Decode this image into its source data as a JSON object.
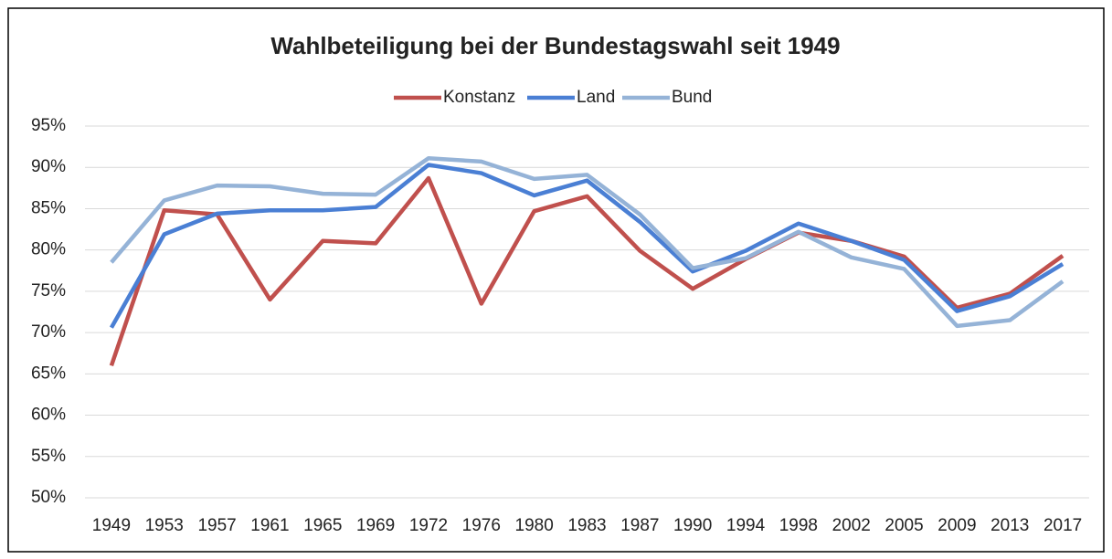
{
  "chart_data": {
    "type": "line",
    "title": "Wahlbeteiligung bei der Bundestagswahl seit 1949",
    "categories": [
      "1949",
      "1953",
      "1957",
      "1961",
      "1965",
      "1969",
      "1972",
      "1976",
      "1980",
      "1983",
      "1987",
      "1990",
      "1994",
      "1998",
      "2002",
      "2005",
      "2009",
      "2013",
      "2017"
    ],
    "series": [
      {
        "name": "Konstanz",
        "color": "#c0504d",
        "values": [
          66.0,
          84.8,
          84.3,
          74.0,
          81.1,
          80.8,
          88.7,
          73.5,
          84.7,
          86.5,
          79.9,
          75.3,
          78.9,
          82.1,
          81.1,
          79.2,
          73.0,
          74.7,
          79.3
        ]
      },
      {
        "name": "Land",
        "color": "#4a7fd4",
        "values": [
          70.6,
          81.9,
          84.4,
          84.8,
          84.8,
          85.2,
          90.3,
          89.3,
          86.6,
          88.4,
          83.4,
          77.4,
          79.9,
          83.2,
          81.1,
          78.8,
          72.6,
          74.4,
          78.3
        ]
      },
      {
        "name": "Bund",
        "color": "#95b3d7",
        "values": [
          78.5,
          86.0,
          87.8,
          87.7,
          86.8,
          86.7,
          91.1,
          90.7,
          88.6,
          89.1,
          84.3,
          77.8,
          79.0,
          82.2,
          79.1,
          77.7,
          70.8,
          71.5,
          76.2
        ]
      }
    ],
    "ylim": [
      50,
      95
    ],
    "yticks": [
      {
        "value": 50,
        "label": "50%"
      },
      {
        "value": 55,
        "label": "55%"
      },
      {
        "value": 60,
        "label": "60%"
      },
      {
        "value": 65,
        "label": "65%"
      },
      {
        "value": 70,
        "label": "70%"
      },
      {
        "value": 75,
        "label": "75%"
      },
      {
        "value": 80,
        "label": "80%"
      },
      {
        "value": 85,
        "label": "85%"
      },
      {
        "value": 90,
        "label": "90%"
      },
      {
        "value": 95,
        "label": "95%"
      }
    ],
    "grid": true,
    "legend": "top"
  }
}
